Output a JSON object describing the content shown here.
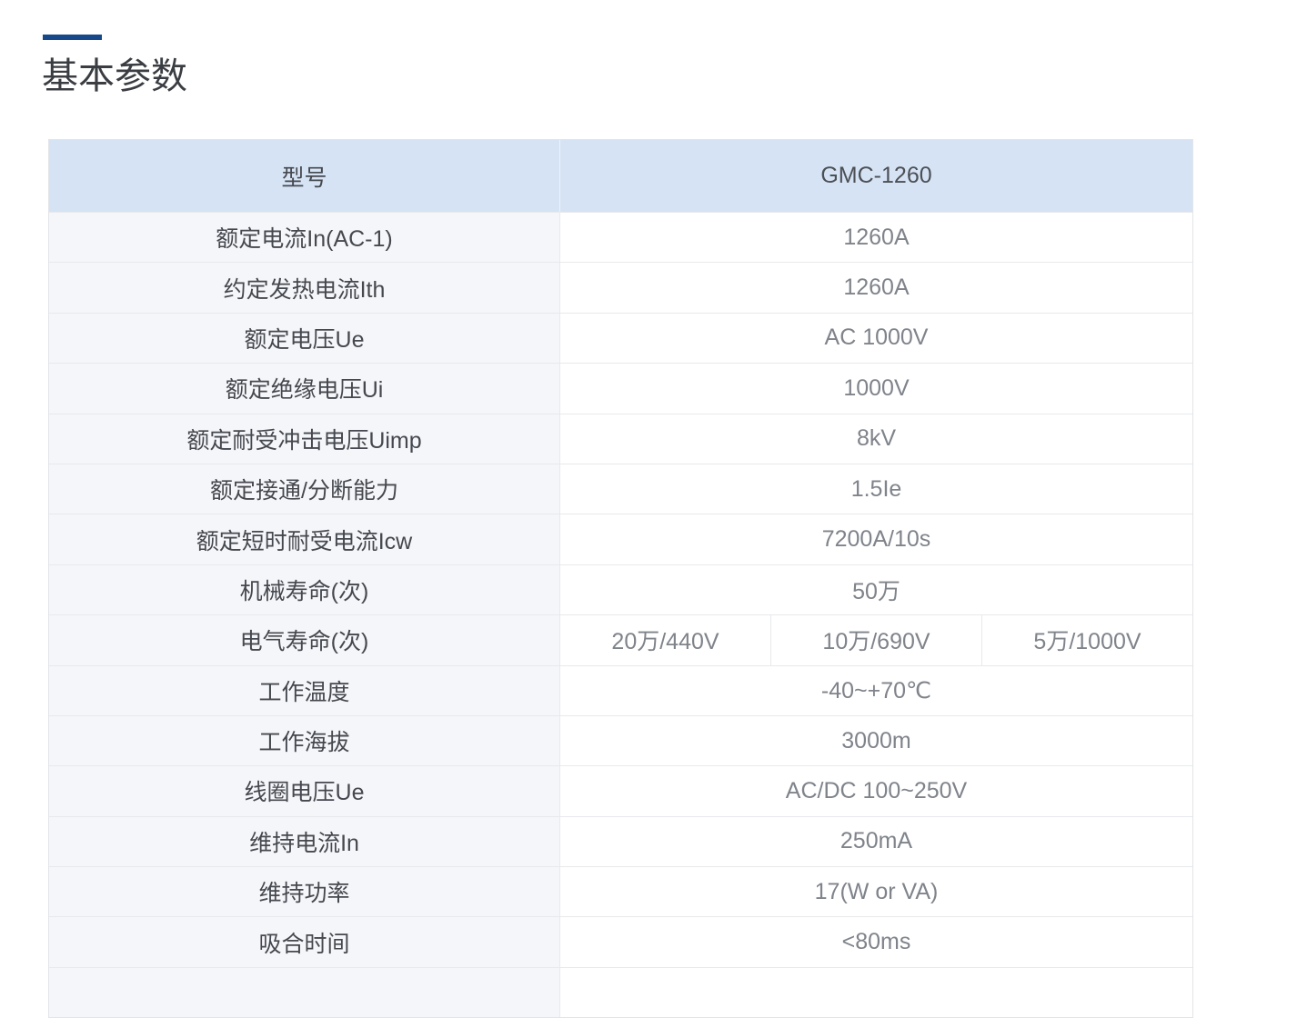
{
  "page": {
    "title": "基本参数"
  },
  "colors": {
    "accent": "#17498a",
    "header_bg": "#d6e3f4",
    "label_bg": "#f5f6fa",
    "border": "#e8e9ec"
  },
  "table": {
    "header": {
      "label": "型号",
      "value": "GMC-1260"
    },
    "rows": [
      {
        "label": "额定电流In(AC-1)",
        "values": [
          "1260A"
        ]
      },
      {
        "label": "约定发热电流Ith",
        "values": [
          "1260A"
        ]
      },
      {
        "label": "额定电压Ue",
        "values": [
          "AC 1000V"
        ]
      },
      {
        "label": "额定绝缘电压Ui",
        "values": [
          "1000V"
        ]
      },
      {
        "label": "额定耐受冲击电压Uimp",
        "values": [
          "8kV"
        ]
      },
      {
        "label": "额定接通/分断能力",
        "values": [
          "1.5Ie"
        ]
      },
      {
        "label": "额定短时耐受电流Icw",
        "values": [
          "7200A/10s"
        ]
      },
      {
        "label": "机械寿命(次)",
        "values": [
          "50万"
        ]
      },
      {
        "label": "电气寿命(次)",
        "values": [
          "20万/440V",
          "10万/690V",
          "5万/1000V"
        ]
      },
      {
        "label": "工作温度",
        "values": [
          "-40~+70℃"
        ]
      },
      {
        "label": "工作海拔",
        "values": [
          "3000m"
        ]
      },
      {
        "label": "线圈电压Ue",
        "values": [
          "AC/DC 100~250V"
        ]
      },
      {
        "label": "维持电流In",
        "values": [
          "250mA"
        ]
      },
      {
        "label": "维持功率",
        "values": [
          "17(W or VA)"
        ]
      },
      {
        "label": "吸合时间",
        "values": [
          "<80ms"
        ]
      },
      {
        "label": "",
        "values": [
          ""
        ]
      }
    ]
  }
}
